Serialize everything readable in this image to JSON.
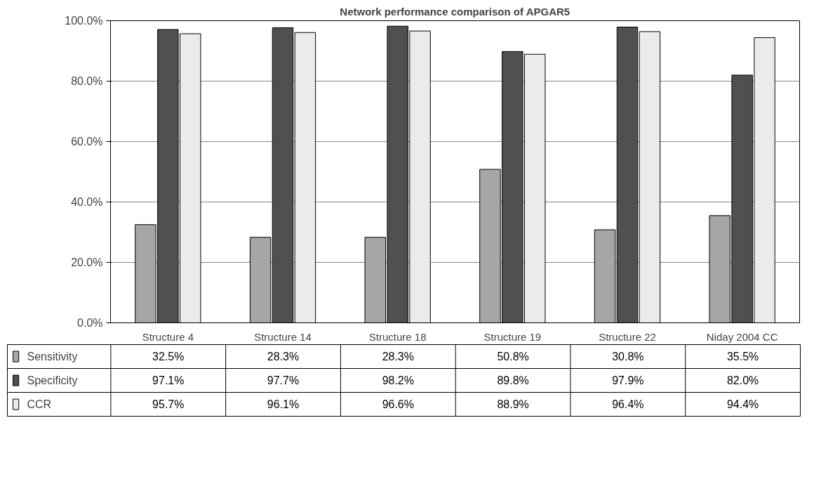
{
  "chart_data": {
    "type": "bar",
    "title": "Network performance comparison of APGAR5",
    "categories": [
      "Structure 4",
      "Structure 14",
      "Structure 18",
      "Structure 19",
      "Structure 22",
      "Niday 2004 CC"
    ],
    "series": [
      {
        "name": "Sensitivity",
        "color": "#a6a6a6",
        "values": [
          32.5,
          28.3,
          28.3,
          50.8,
          30.8,
          35.5
        ],
        "value_labels": [
          "32.5%",
          "28.3%",
          "28.3%",
          "50.8%",
          "30.8%",
          "35.5%"
        ]
      },
      {
        "name": "Specificity",
        "color": "#505050",
        "values": [
          97.1,
          97.7,
          98.2,
          89.8,
          97.9,
          82.0
        ],
        "value_labels": [
          "97.1%",
          "97.7%",
          "98.2%",
          "89.8%",
          "97.9%",
          "82.0%"
        ]
      },
      {
        "name": "CCR",
        "color": "#ebebeb",
        "values": [
          95.7,
          96.1,
          96.6,
          88.9,
          96.4,
          94.4
        ],
        "value_labels": [
          "95.7%",
          "96.1%",
          "96.6%",
          "88.9%",
          "96.4%",
          "94.4%"
        ]
      }
    ],
    "ylim": [
      0,
      100
    ],
    "yticks": [
      {
        "value": 0,
        "label": "0.0%"
      },
      {
        "value": 20,
        "label": "20.0%"
      },
      {
        "value": 40,
        "label": "40.0%"
      },
      {
        "value": 60,
        "label": "60.0%"
      },
      {
        "value": 80,
        "label": "80.0%"
      },
      {
        "value": 100,
        "label": "100.0%"
      }
    ],
    "grid": "y",
    "legend": "bottom"
  }
}
